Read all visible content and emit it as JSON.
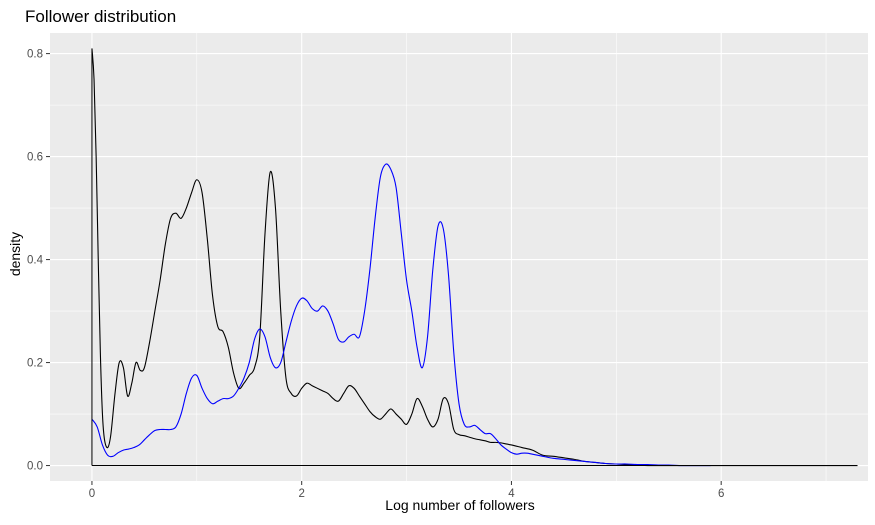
{
  "chart_data": {
    "type": "line",
    "title": "Follower distribution",
    "xlabel": "Log number of followers",
    "ylabel": "density",
    "xlim": [
      -0.4,
      7.4
    ],
    "ylim": [
      -0.03,
      0.84
    ],
    "x_ticks": [
      0,
      2,
      4,
      6
    ],
    "x_tick_labels": [
      "0",
      "2",
      "4",
      "6"
    ],
    "y_ticks": [
      0.0,
      0.2,
      0.4,
      0.6,
      0.8
    ],
    "y_tick_labels": [
      "0.0",
      "0.2",
      "0.4",
      "0.6",
      "0.8"
    ],
    "grid": true,
    "legend": "none",
    "series": [
      {
        "color": "#000000",
        "x": [
          0.0,
          0.02,
          0.04,
          0.06,
          0.08,
          0.1,
          0.12,
          0.15,
          0.18,
          0.22,
          0.26,
          0.3,
          0.34,
          0.38,
          0.42,
          0.46,
          0.5,
          0.55,
          0.6,
          0.65,
          0.7,
          0.75,
          0.8,
          0.85,
          0.9,
          0.95,
          1.0,
          1.05,
          1.1,
          1.15,
          1.2,
          1.25,
          1.3,
          1.35,
          1.4,
          1.45,
          1.5,
          1.55,
          1.6,
          1.65,
          1.7,
          1.75,
          1.8,
          1.85,
          1.9,
          1.95,
          2.0,
          2.05,
          2.1,
          2.15,
          2.2,
          2.25,
          2.3,
          2.35,
          2.4,
          2.45,
          2.5,
          2.55,
          2.6,
          2.65,
          2.7,
          2.75,
          2.8,
          2.85,
          2.9,
          2.95,
          3.0,
          3.05,
          3.1,
          3.15,
          3.2,
          3.25,
          3.3,
          3.35,
          3.4,
          3.45,
          3.5,
          3.55,
          3.6,
          3.65,
          3.7,
          3.75,
          3.8,
          3.85,
          3.9,
          3.95,
          4.0,
          4.1,
          4.2,
          4.3,
          4.4,
          4.5,
          4.6,
          4.65,
          4.7,
          4.8,
          4.9,
          5.0,
          5.1,
          5.2,
          5.3,
          5.4,
          5.5,
          5.6,
          5.7,
          5.8,
          6.0,
          6.5,
          7.0,
          7.3
        ],
        "y": [
          0.81,
          0.75,
          0.6,
          0.4,
          0.22,
          0.1,
          0.05,
          0.035,
          0.06,
          0.14,
          0.2,
          0.19,
          0.135,
          0.16,
          0.2,
          0.185,
          0.19,
          0.24,
          0.3,
          0.36,
          0.43,
          0.48,
          0.49,
          0.48,
          0.5,
          0.53,
          0.555,
          0.53,
          0.44,
          0.33,
          0.27,
          0.26,
          0.23,
          0.18,
          0.15,
          0.16,
          0.175,
          0.19,
          0.25,
          0.45,
          0.57,
          0.5,
          0.3,
          0.17,
          0.14,
          0.135,
          0.15,
          0.16,
          0.155,
          0.15,
          0.145,
          0.14,
          0.13,
          0.125,
          0.14,
          0.155,
          0.15,
          0.135,
          0.12,
          0.105,
          0.095,
          0.09,
          0.1,
          0.11,
          0.1,
          0.09,
          0.08,
          0.1,
          0.13,
          0.115,
          0.09,
          0.075,
          0.09,
          0.13,
          0.12,
          0.07,
          0.06,
          0.058,
          0.055,
          0.052,
          0.05,
          0.048,
          0.045,
          0.045,
          0.044,
          0.042,
          0.04,
          0.035,
          0.03,
          0.02,
          0.018,
          0.015,
          0.012,
          0.01,
          0.008,
          0.006,
          0.004,
          0.003,
          0.002,
          0.001,
          0.0,
          0.0,
          0.0,
          0.0,
          0.0,
          0.0,
          0.0,
          0.0,
          0.0,
          0.0
        ]
      },
      {
        "color": "#0000ff",
        "x": [
          0.0,
          0.05,
          0.1,
          0.15,
          0.2,
          0.25,
          0.3,
          0.35,
          0.4,
          0.45,
          0.5,
          0.55,
          0.6,
          0.65,
          0.7,
          0.75,
          0.8,
          0.85,
          0.9,
          0.95,
          1.0,
          1.05,
          1.1,
          1.15,
          1.2,
          1.25,
          1.3,
          1.35,
          1.4,
          1.45,
          1.5,
          1.55,
          1.6,
          1.65,
          1.7,
          1.75,
          1.8,
          1.85,
          1.9,
          1.95,
          2.0,
          2.05,
          2.1,
          2.15,
          2.2,
          2.25,
          2.3,
          2.35,
          2.4,
          2.45,
          2.5,
          2.55,
          2.6,
          2.65,
          2.7,
          2.75,
          2.8,
          2.85,
          2.9,
          2.95,
          3.0,
          3.05,
          3.1,
          3.15,
          3.2,
          3.25,
          3.3,
          3.35,
          3.4,
          3.45,
          3.5,
          3.55,
          3.6,
          3.65,
          3.7,
          3.75,
          3.8,
          3.85,
          3.9,
          3.95,
          4.0,
          4.05,
          4.1,
          4.15,
          4.2,
          4.3,
          4.4,
          4.5,
          4.6,
          4.7,
          4.8,
          4.9,
          5.0,
          5.1,
          5.2,
          5.3,
          5.4,
          5.5,
          5.6,
          5.7,
          5.8,
          5.9
        ],
        "y": [
          0.09,
          0.075,
          0.04,
          0.02,
          0.018,
          0.025,
          0.03,
          0.032,
          0.035,
          0.04,
          0.05,
          0.06,
          0.068,
          0.07,
          0.07,
          0.07,
          0.075,
          0.1,
          0.14,
          0.17,
          0.175,
          0.15,
          0.13,
          0.12,
          0.125,
          0.13,
          0.13,
          0.135,
          0.15,
          0.17,
          0.2,
          0.245,
          0.265,
          0.25,
          0.21,
          0.19,
          0.2,
          0.24,
          0.28,
          0.31,
          0.325,
          0.32,
          0.305,
          0.3,
          0.31,
          0.3,
          0.275,
          0.245,
          0.24,
          0.25,
          0.255,
          0.25,
          0.3,
          0.38,
          0.48,
          0.56,
          0.585,
          0.575,
          0.54,
          0.45,
          0.36,
          0.3,
          0.23,
          0.19,
          0.25,
          0.38,
          0.465,
          0.46,
          0.37,
          0.22,
          0.12,
          0.08,
          0.075,
          0.078,
          0.07,
          0.062,
          0.062,
          0.052,
          0.04,
          0.032,
          0.025,
          0.022,
          0.024,
          0.024,
          0.022,
          0.018,
          0.014,
          0.012,
          0.01,
          0.008,
          0.006,
          0.004,
          0.003,
          0.003,
          0.002,
          0.002,
          0.001,
          0.001,
          0.0,
          0.0,
          0.0,
          0.0
        ]
      }
    ]
  }
}
